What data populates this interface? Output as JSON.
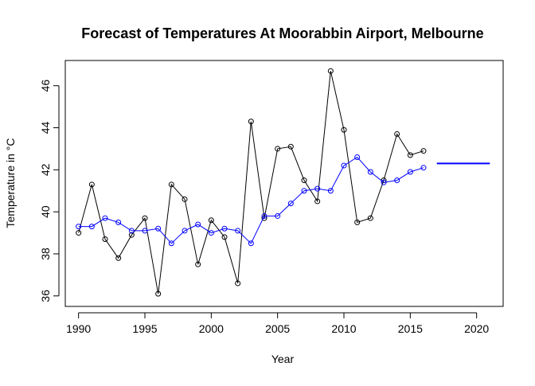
{
  "chart_data": {
    "type": "line",
    "title": "Forecast of Temperatures At Moorabbin Airport, Melbourne",
    "xlabel": "Year",
    "ylabel": "Temperature in °C",
    "xlim": [
      1989,
      2022
    ],
    "ylim": [
      35.5,
      47.2
    ],
    "x_ticks": [
      1990,
      1995,
      2000,
      2005,
      2010,
      2015,
      2020
    ],
    "y_ticks": [
      36,
      38,
      40,
      42,
      44,
      46
    ],
    "grid": false,
    "legend": "none",
    "series": [
      {
        "color": "#000000",
        "marker": "circle-open",
        "x": [
          1990,
          1991,
          1992,
          1993,
          1994,
          1995,
          1996,
          1997,
          1998,
          1999,
          2000,
          2001,
          2002,
          2003,
          2004,
          2005,
          2006,
          2007,
          2008,
          2009,
          2010,
          2011,
          2012,
          2013,
          2014,
          2015,
          2016
        ],
        "values": [
          39.0,
          41.3,
          38.7,
          37.8,
          38.9,
          39.7,
          36.1,
          41.3,
          40.6,
          37.5,
          39.6,
          38.8,
          36.6,
          44.3,
          39.7,
          43.0,
          43.1,
          41.5,
          40.5,
          46.7,
          43.9,
          39.5,
          39.7,
          41.5,
          43.7,
          42.7,
          42.9
        ]
      },
      {
        "color": "#0000ff",
        "marker": "circle-open",
        "x": [
          1990,
          1991,
          1992,
          1993,
          1994,
          1995,
          1996,
          1997,
          1998,
          1999,
          2000,
          2001,
          2002,
          2003,
          2004,
          2005,
          2006,
          2007,
          2008,
          2009,
          2010,
          2011,
          2012,
          2013,
          2014,
          2015,
          2016
        ],
        "values": [
          39.3,
          39.3,
          39.7,
          39.5,
          39.1,
          39.1,
          39.2,
          38.5,
          39.1,
          39.4,
          39.0,
          39.2,
          39.1,
          38.5,
          39.8,
          39.8,
          40.4,
          41.0,
          41.1,
          41.0,
          42.2,
          42.6,
          41.9,
          41.4,
          41.5,
          41.9,
          42.1
        ]
      },
      {
        "color": "#0000ff",
        "marker": "none",
        "x": [
          2017,
          2021
        ],
        "values": [
          42.3,
          42.3
        ]
      }
    ]
  }
}
